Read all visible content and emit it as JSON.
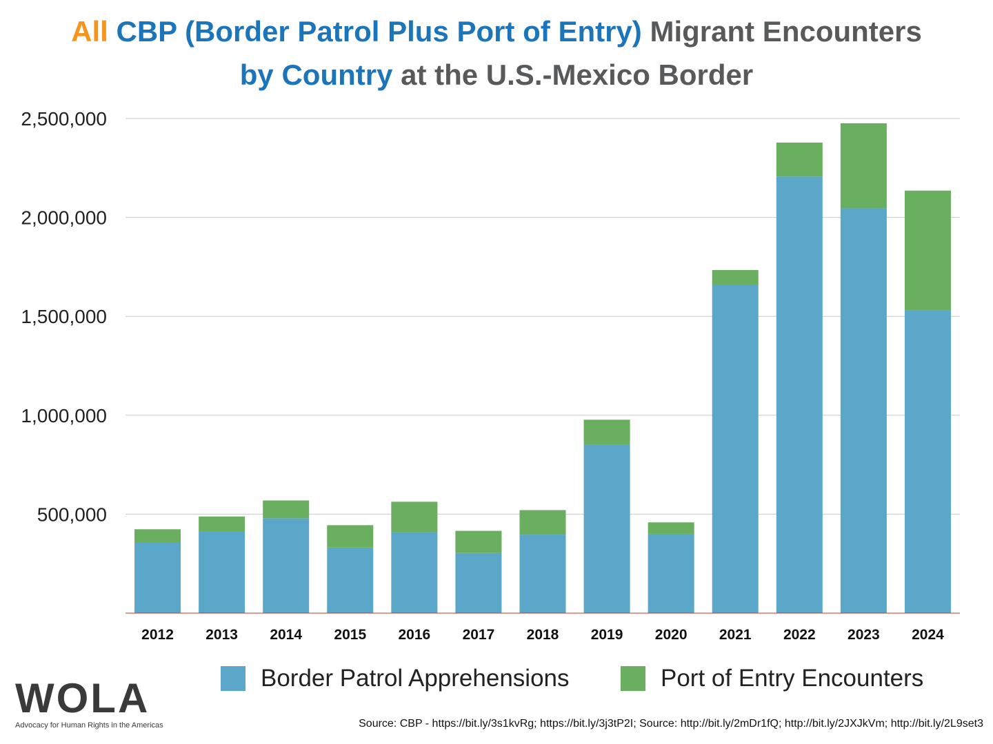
{
  "title": {
    "line1": [
      {
        "text": "All",
        "color": "#f7941d"
      },
      {
        "text": " CBP (Border Patrol Plus Port of Entry)",
        "color": "#1b75bb"
      },
      {
        "text": " Migrant Encounters",
        "color": "#58595b"
      }
    ],
    "line2": [
      {
        "text": "by Country",
        "color": "#1b75bb"
      },
      {
        "text": " at the U.S.-Mexico Border",
        "color": "#58595b"
      }
    ]
  },
  "chart_data": {
    "type": "bar",
    "stacked": true,
    "categories": [
      "2012",
      "2013",
      "2014",
      "2015",
      "2016",
      "2017",
      "2018",
      "2019",
      "2020",
      "2021",
      "2022",
      "2023",
      "2024"
    ],
    "series": [
      {
        "name": "Border Patrol Apprehensions",
        "color": "#5ba7c9",
        "values": [
          356873,
          414397,
          479371,
          331333,
          408870,
          303916,
          396579,
          851508,
          400651,
          1659206,
          2206436,
          2045838,
          1530523
        ]
      },
      {
        "name": "Port of Entry Encounters",
        "color": "#6aaf5f",
        "values": [
          67000,
          74000,
          90000,
          113000,
          154000,
          112000,
          124000,
          126000,
          58000,
          75000,
          172000,
          430000,
          605000
        ]
      }
    ],
    "ylim": [
      0,
      2500000
    ],
    "yticks": [
      500000,
      1000000,
      1500000,
      2000000,
      2500000
    ],
    "ytick_labels": [
      "500,000",
      "1,000,000",
      "1,500,000",
      "2,000,000",
      "2,500,000"
    ],
    "grid": true,
    "legend_position": "bottom"
  },
  "legend": {
    "items": [
      {
        "label": "Border Patrol Apprehensions",
        "color": "#5ba7c9"
      },
      {
        "label": "Port of Entry Encounters",
        "color": "#6aaf5f"
      }
    ]
  },
  "logo": {
    "word": "WOLA",
    "tagline": "Advocacy for Human Rights in the Americas"
  },
  "source": "Source: CBP - https://bit.ly/3s1kvRg; https://bit.ly/3j3tP2I; Source: http://bit.ly/2mDr1fQ; http://bit.ly/2JXJkVm; http://bit.ly/2L9set3"
}
